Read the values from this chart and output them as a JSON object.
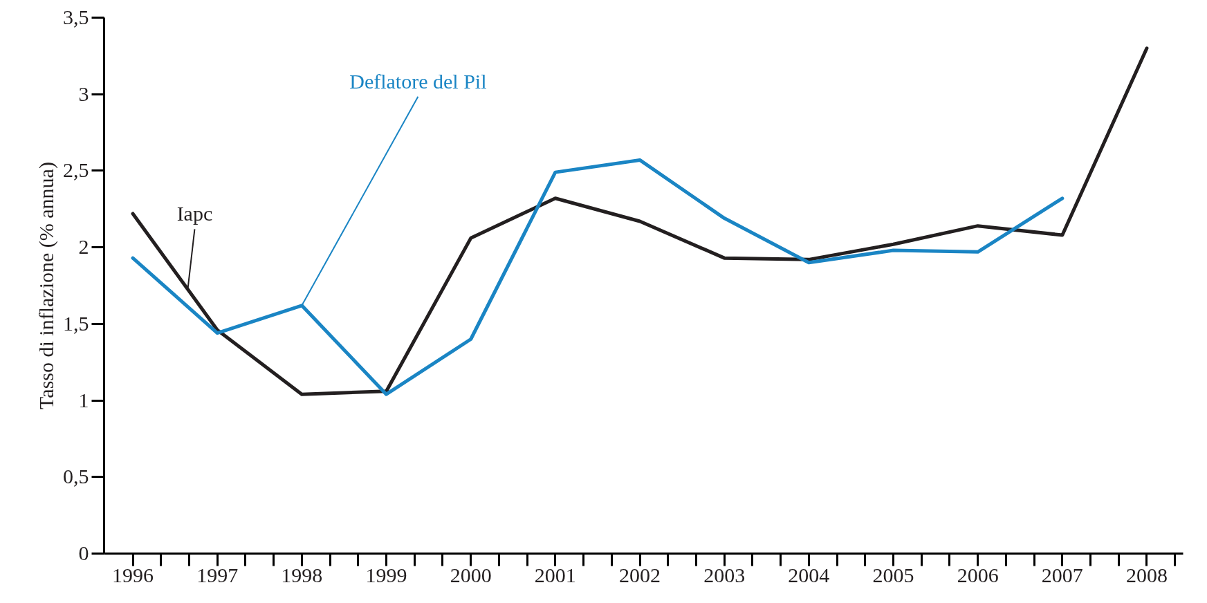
{
  "chart_data": {
    "type": "line",
    "ylabel": "Tasso di inflazione (% annua)",
    "x": [
      1996,
      1997,
      1998,
      1999,
      2000,
      2001,
      2002,
      2003,
      2004,
      2005,
      2006,
      2007,
      2008
    ],
    "series": [
      {
        "name": "Iapc",
        "color": "#231f20",
        "values": [
          2.22,
          1.46,
          1.04,
          1.06,
          2.06,
          2.32,
          2.17,
          1.93,
          1.92,
          2.02,
          2.14,
          2.08,
          3.3
        ]
      },
      {
        "name": "Deflatore del Pil",
        "color": "#1a85c4",
        "values": [
          1.93,
          1.44,
          1.62,
          1.04,
          1.4,
          2.49,
          2.57,
          2.19,
          1.9,
          1.98,
          1.97,
          2.32,
          null
        ]
      }
    ],
    "ylim": [
      0,
      3.5
    ],
    "yticks": [
      0,
      {
        "value": 0.5,
        "label": "0,5"
      },
      1,
      {
        "value": 1.5,
        "label": "1,5"
      },
      2,
      {
        "value": 2.5,
        "label": "2,5"
      },
      3,
      {
        "value": 3.5,
        "label": "3,5"
      }
    ],
    "xlim": [
      1995.66,
      2008.43
    ],
    "xticks": [
      1996,
      1997,
      1998,
      1999,
      2000,
      2001,
      2002,
      2003,
      2004,
      2005,
      2006,
      2007,
      2008
    ],
    "grid": false,
    "marker": "none",
    "line_style": "solid"
  }
}
